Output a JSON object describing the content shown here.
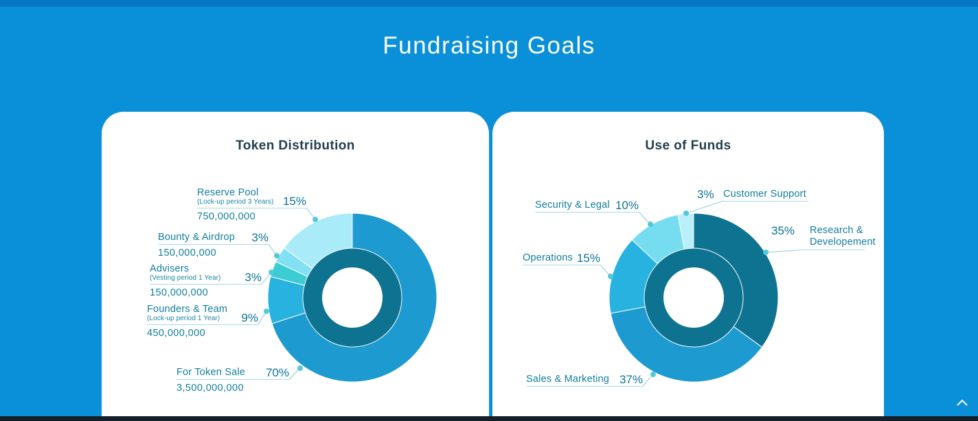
{
  "page": {
    "title": "Fundraising Goals",
    "scroll_top_icon": "chevron-up"
  },
  "colors": {
    "background": "#0a90d8",
    "top_bar": "#0677c4",
    "bottom_bar": "#151f29",
    "card": "#ffffff",
    "card_title": "#22404e",
    "label_text": "#117e9d",
    "leader_line": "#a0d8e4",
    "leader_dot": "#55c8dc",
    "donut_inner_ring": "#0e7391"
  },
  "chart_data": [
    {
      "type": "donut",
      "title": "Token Distribution",
      "legend_position": "left",
      "segments": [
        {
          "label": "For Token Sale",
          "sublabel": "",
          "percent": 70,
          "percent_label": "70%",
          "amount": "3,500,000,000",
          "color": "#1d9ad0"
        },
        {
          "label": "Founders & Team",
          "sublabel": "(Lock-up period 1 Year)",
          "percent": 9,
          "percent_label": "9%",
          "amount": "450,000,000",
          "color": "#27b2e0"
        },
        {
          "label": "Advisers",
          "sublabel": "(Vesting period 1 Year)",
          "percent": 3,
          "percent_label": "3%",
          "amount": "150,000,000",
          "color": "#3bcdd3"
        },
        {
          "label": "Bounty & Airdrop",
          "sublabel": "",
          "percent": 3,
          "percent_label": "3%",
          "amount": "150,000,000",
          "color": "#82e0f3"
        },
        {
          "label": "Reserve Pool",
          "sublabel": "(Lock-up period 3 Years)",
          "percent": 15,
          "percent_label": "15%",
          "amount": "750,000,000",
          "color": "#a9ebf8"
        }
      ]
    },
    {
      "type": "donut",
      "title": "Use of Funds",
      "legend_position": "around",
      "segments": [
        {
          "label": "Research &\nDevelopement",
          "percent": 35,
          "percent_label": "35%",
          "color": "#0e7391"
        },
        {
          "label": "Sales & Marketing",
          "percent": 37,
          "percent_label": "37%",
          "color": "#1d9ad0"
        },
        {
          "label": "Operations",
          "percent": 15,
          "percent_label": "15%",
          "color": "#27b2e0"
        },
        {
          "label": "Security & Legal",
          "percent": 10,
          "percent_label": "10%",
          "color": "#76dcf0"
        },
        {
          "label": "Customer Support",
          "percent": 3,
          "percent_label": "3%",
          "color": "#b9effa"
        }
      ]
    }
  ]
}
